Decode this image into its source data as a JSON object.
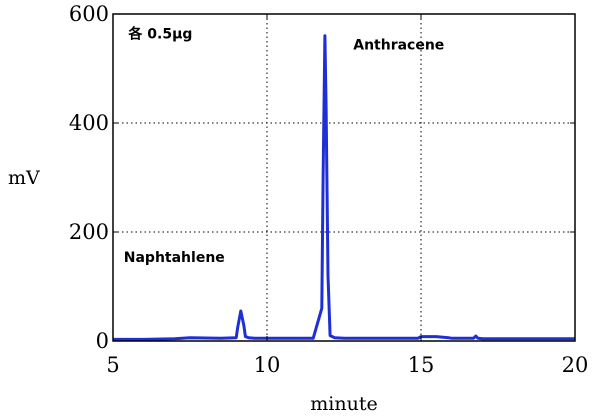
{
  "chart_data": {
    "type": "line",
    "title": "",
    "xlabel": "minute",
    "ylabel": "mV",
    "xlim": [
      5,
      20
    ],
    "ylim": [
      0,
      600
    ],
    "x_ticks": [
      5,
      10,
      15,
      20
    ],
    "y_ticks": [
      0,
      200,
      400,
      600
    ],
    "x_tick_labels": [
      "5",
      "10",
      "15",
      "20"
    ],
    "y_tick_labels": [
      "0",
      "200",
      "400",
      "600"
    ],
    "grid": "dotted",
    "grid_x": [
      10,
      15
    ],
    "grid_y": [
      200,
      400
    ],
    "series": [
      {
        "color": "#1f2fd6",
        "x": [
          5.0,
          6.0,
          7.0,
          7.5,
          8.5,
          9.0,
          9.05,
          9.15,
          9.25,
          9.3,
          9.4,
          9.6,
          10.5,
          11.5,
          11.78,
          11.82,
          11.88,
          11.92,
          11.98,
          12.05,
          12.2,
          12.5,
          13.5,
          14.5,
          14.9,
          15.0,
          15.5,
          15.9,
          16.0,
          16.7,
          16.78,
          16.85,
          17.0,
          18.0,
          19.0,
          20.0
        ],
        "y": [
          3,
          3,
          4,
          6,
          5,
          6,
          25,
          55,
          28,
          8,
          6,
          5,
          5,
          5,
          60,
          300,
          560,
          430,
          120,
          10,
          6,
          5,
          5,
          5,
          5,
          8,
          8,
          6,
          5,
          5,
          9,
          5,
          4,
          4,
          4,
          4
        ]
      }
    ],
    "annotations": [
      {
        "text": "各 0.5μg",
        "x": 5.5,
        "y": 555
      },
      {
        "text": "Anthracene",
        "x": 12.8,
        "y": 535
      },
      {
        "text": "Naphtahlene",
        "x": 5.35,
        "y": 145
      }
    ]
  }
}
